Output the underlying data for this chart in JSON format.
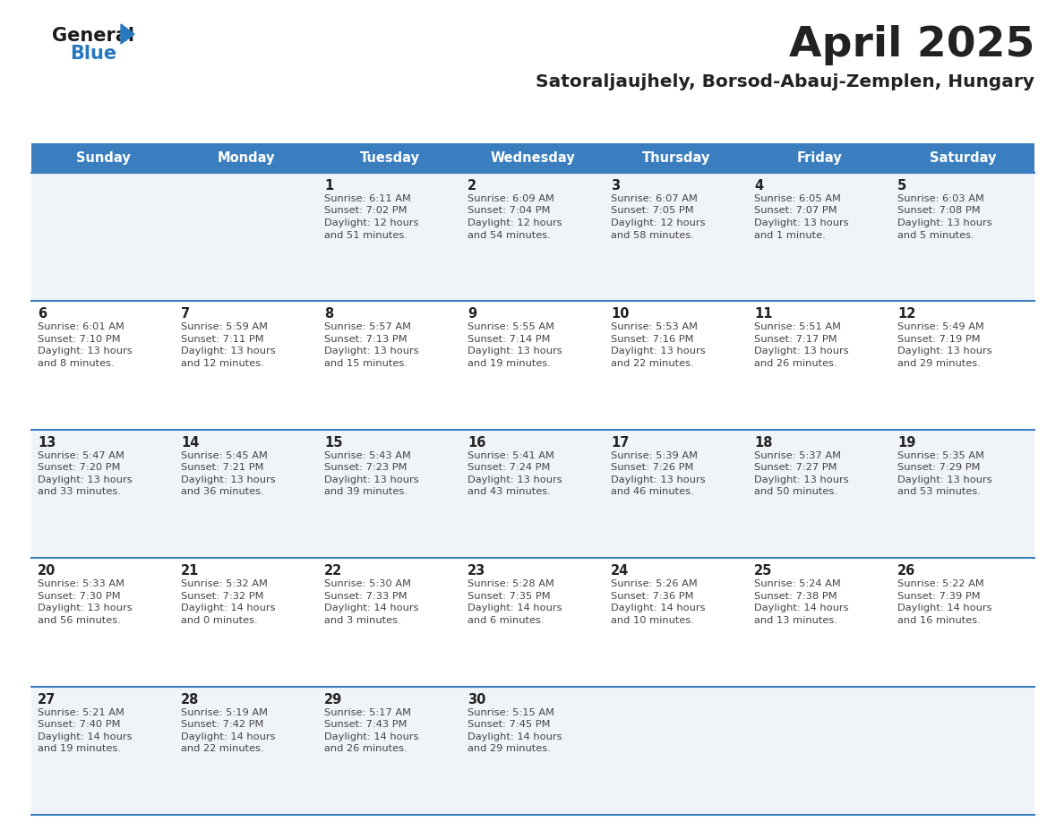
{
  "title": "April 2025",
  "subtitle": "Satoraljaujhely, Borsod-Abauj-Zemplen, Hungary",
  "days_of_week": [
    "Sunday",
    "Monday",
    "Tuesday",
    "Wednesday",
    "Thursday",
    "Friday",
    "Saturday"
  ],
  "header_bg": "#3a7ebf",
  "header_text": "#ffffff",
  "row_bg_odd": "#f0f4f8",
  "row_bg_even": "#ffffff",
  "cell_text_color": "#444444",
  "day_num_color": "#222222",
  "border_color": "#3a7ebf",
  "title_color": "#222222",
  "subtitle_color": "#222222",
  "logo_general_color": "#1a1a1a",
  "logo_blue_color": "#2878c0",
  "calendar_data": [
    [
      {
        "day": "",
        "info": ""
      },
      {
        "day": "",
        "info": ""
      },
      {
        "day": "1",
        "info": "Sunrise: 6:11 AM\nSunset: 7:02 PM\nDaylight: 12 hours\nand 51 minutes."
      },
      {
        "day": "2",
        "info": "Sunrise: 6:09 AM\nSunset: 7:04 PM\nDaylight: 12 hours\nand 54 minutes."
      },
      {
        "day": "3",
        "info": "Sunrise: 6:07 AM\nSunset: 7:05 PM\nDaylight: 12 hours\nand 58 minutes."
      },
      {
        "day": "4",
        "info": "Sunrise: 6:05 AM\nSunset: 7:07 PM\nDaylight: 13 hours\nand 1 minute."
      },
      {
        "day": "5",
        "info": "Sunrise: 6:03 AM\nSunset: 7:08 PM\nDaylight: 13 hours\nand 5 minutes."
      }
    ],
    [
      {
        "day": "6",
        "info": "Sunrise: 6:01 AM\nSunset: 7:10 PM\nDaylight: 13 hours\nand 8 minutes."
      },
      {
        "day": "7",
        "info": "Sunrise: 5:59 AM\nSunset: 7:11 PM\nDaylight: 13 hours\nand 12 minutes."
      },
      {
        "day": "8",
        "info": "Sunrise: 5:57 AM\nSunset: 7:13 PM\nDaylight: 13 hours\nand 15 minutes."
      },
      {
        "day": "9",
        "info": "Sunrise: 5:55 AM\nSunset: 7:14 PM\nDaylight: 13 hours\nand 19 minutes."
      },
      {
        "day": "10",
        "info": "Sunrise: 5:53 AM\nSunset: 7:16 PM\nDaylight: 13 hours\nand 22 minutes."
      },
      {
        "day": "11",
        "info": "Sunrise: 5:51 AM\nSunset: 7:17 PM\nDaylight: 13 hours\nand 26 minutes."
      },
      {
        "day": "12",
        "info": "Sunrise: 5:49 AM\nSunset: 7:19 PM\nDaylight: 13 hours\nand 29 minutes."
      }
    ],
    [
      {
        "day": "13",
        "info": "Sunrise: 5:47 AM\nSunset: 7:20 PM\nDaylight: 13 hours\nand 33 minutes."
      },
      {
        "day": "14",
        "info": "Sunrise: 5:45 AM\nSunset: 7:21 PM\nDaylight: 13 hours\nand 36 minutes."
      },
      {
        "day": "15",
        "info": "Sunrise: 5:43 AM\nSunset: 7:23 PM\nDaylight: 13 hours\nand 39 minutes."
      },
      {
        "day": "16",
        "info": "Sunrise: 5:41 AM\nSunset: 7:24 PM\nDaylight: 13 hours\nand 43 minutes."
      },
      {
        "day": "17",
        "info": "Sunrise: 5:39 AM\nSunset: 7:26 PM\nDaylight: 13 hours\nand 46 minutes."
      },
      {
        "day": "18",
        "info": "Sunrise: 5:37 AM\nSunset: 7:27 PM\nDaylight: 13 hours\nand 50 minutes."
      },
      {
        "day": "19",
        "info": "Sunrise: 5:35 AM\nSunset: 7:29 PM\nDaylight: 13 hours\nand 53 minutes."
      }
    ],
    [
      {
        "day": "20",
        "info": "Sunrise: 5:33 AM\nSunset: 7:30 PM\nDaylight: 13 hours\nand 56 minutes."
      },
      {
        "day": "21",
        "info": "Sunrise: 5:32 AM\nSunset: 7:32 PM\nDaylight: 14 hours\nand 0 minutes."
      },
      {
        "day": "22",
        "info": "Sunrise: 5:30 AM\nSunset: 7:33 PM\nDaylight: 14 hours\nand 3 minutes."
      },
      {
        "day": "23",
        "info": "Sunrise: 5:28 AM\nSunset: 7:35 PM\nDaylight: 14 hours\nand 6 minutes."
      },
      {
        "day": "24",
        "info": "Sunrise: 5:26 AM\nSunset: 7:36 PM\nDaylight: 14 hours\nand 10 minutes."
      },
      {
        "day": "25",
        "info": "Sunrise: 5:24 AM\nSunset: 7:38 PM\nDaylight: 14 hours\nand 13 minutes."
      },
      {
        "day": "26",
        "info": "Sunrise: 5:22 AM\nSunset: 7:39 PM\nDaylight: 14 hours\nand 16 minutes."
      }
    ],
    [
      {
        "day": "27",
        "info": "Sunrise: 5:21 AM\nSunset: 7:40 PM\nDaylight: 14 hours\nand 19 minutes."
      },
      {
        "day": "28",
        "info": "Sunrise: 5:19 AM\nSunset: 7:42 PM\nDaylight: 14 hours\nand 22 minutes."
      },
      {
        "day": "29",
        "info": "Sunrise: 5:17 AM\nSunset: 7:43 PM\nDaylight: 14 hours\nand 26 minutes."
      },
      {
        "day": "30",
        "info": "Sunrise: 5:15 AM\nSunset: 7:45 PM\nDaylight: 14 hours\nand 29 minutes."
      },
      {
        "day": "",
        "info": ""
      },
      {
        "day": "",
        "info": ""
      },
      {
        "day": "",
        "info": ""
      }
    ]
  ]
}
